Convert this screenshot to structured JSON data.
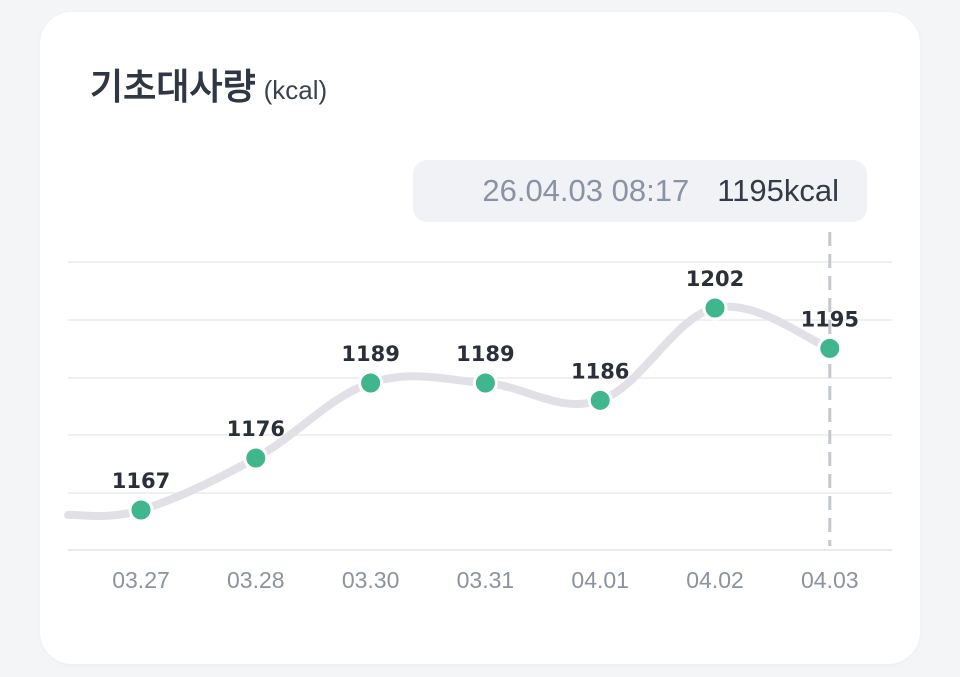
{
  "title": "기초대사량",
  "unit": "(kcal)",
  "tooltip": {
    "timestamp": "26.04.03 08:17",
    "value": "1195kcal"
  },
  "colors": {
    "line": "#e0e0e6",
    "point": "#3fb68b",
    "grid": "#e9ebef",
    "crosshair": "#c4c8cf"
  },
  "chart_data": {
    "type": "line",
    "title": "기초대사량",
    "categories": [
      "03.27",
      "03.28",
      "03.30",
      "03.31",
      "04.01",
      "04.02",
      "04.03"
    ],
    "values": [
      1167,
      1176,
      1189,
      1189,
      1186,
      1202,
      1195
    ],
    "ylim": [
      1160,
      1210
    ],
    "grid": true,
    "highlighted_index": 6
  }
}
